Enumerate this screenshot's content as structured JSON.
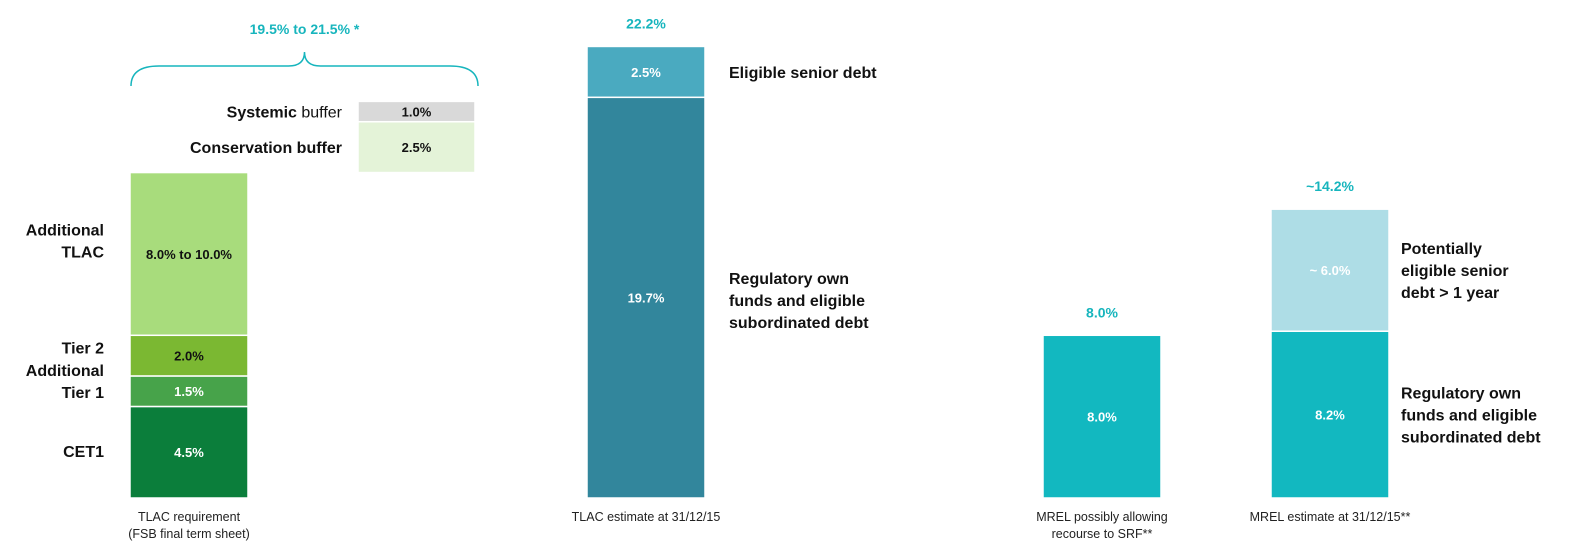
{
  "chart_data": {
    "type": "bar",
    "title": "",
    "xlabel": "",
    "ylabel": "",
    "ylim": [
      0,
      22.2
    ],
    "grid": false,
    "legend": "none",
    "colors": {
      "teal_accent": "#17b5bd",
      "dark_text": "#111111"
    },
    "bars": [
      {
        "category_lines": [
          "TLAC requirement",
          "(FSB final term sheet)"
        ],
        "total_label": "",
        "segments": [
          {
            "name": "CET1",
            "value": 4.5,
            "value_label": "4.5%",
            "color": "#0b7e3b",
            "text_color": "#ffffff"
          },
          {
            "name": "Additional Tier 1",
            "value": 1.5,
            "value_label": "1.5%",
            "color": "#47a34a",
            "text_color": "#ffffff"
          },
          {
            "name": "Tier 2",
            "value": 2.0,
            "value_label": "2.0%",
            "color": "#7bb832",
            "text_color": "#111111"
          },
          {
            "name": "Additional TLAC",
            "value": 8.0,
            "value_label": "8.0% to 10.0%",
            "color": "#a8dc7c",
            "text_color": "#111111"
          }
        ]
      },
      {
        "category_lines": [
          "TLAC estimate at 31/12/15"
        ],
        "total_label": "22.2%",
        "segments": [
          {
            "name": "Regulatory own funds and eligible subordinated debt",
            "value": 19.7,
            "value_label": "19.7%",
            "color": "#32869c",
            "text_color": "#ffffff"
          },
          {
            "name": "Eligible senior debt",
            "value": 2.5,
            "value_label": "2.5%",
            "color": "#4aaac0",
            "text_color": "#ffffff"
          }
        ]
      },
      {
        "category_lines": [
          "MREL possibly allowing",
          "recourse to SRF**"
        ],
        "total_label": "8.0%",
        "segments": [
          {
            "name": "",
            "value": 8.0,
            "value_label": "8.0%",
            "color": "#12b8c0",
            "text_color": "#ffffff"
          }
        ]
      },
      {
        "category_lines": [
          "MREL estimate at 31/12/15**"
        ],
        "total_label": "~14.2%",
        "segments": [
          {
            "name": "Regulatory own funds and eligible subordinated debt",
            "value": 8.2,
            "value_label": "8.2%",
            "color": "#12b8c0",
            "text_color": "#ffffff"
          },
          {
            "name": "Potentially eligible senior debt > 1 year",
            "value": 6.0,
            "value_label": "~ 6.0%",
            "color": "#aedde6",
            "text_color": "#ffffff"
          }
        ]
      }
    ],
    "buffers": [
      {
        "name": "Conservation buffer",
        "value": 2.5,
        "value_label": "2.5%",
        "color": "#e4f3d8"
      },
      {
        "name": "Systemic buffer",
        "value": 1.0,
        "value_label": "1.0%",
        "color": "#d9d9d9"
      }
    ],
    "buffer_labels": [
      {
        "bold_part": "Conservation buffer",
        "normal_part": ""
      },
      {
        "bold_part": "Systemic ",
        "normal_part": "buffer"
      }
    ],
    "range_bracket_label": "19.5% to 21.5% *",
    "tlac_side_labels": [
      {
        "lines": [
          "CET1"
        ]
      },
      {
        "lines": [
          "Additional",
          "Tier 1"
        ]
      },
      {
        "lines": [
          "Tier 2"
        ]
      },
      {
        "lines": [
          "Additional",
          "TLAC"
        ]
      }
    ],
    "tlac_estimate_side_labels": [
      {
        "lines": [
          "Eligible senior debt"
        ]
      },
      {
        "lines": [
          "Regulatory own",
          "funds and eligible",
          "subordinated debt"
        ]
      }
    ],
    "mrel_side_labels": [
      {
        "lines": [
          "Potentially",
          "eligible senior",
          "debt > 1 year"
        ]
      },
      {
        "lines": [
          "Regulatory own",
          "funds and eligible",
          "subordinated debt"
        ]
      }
    ]
  }
}
